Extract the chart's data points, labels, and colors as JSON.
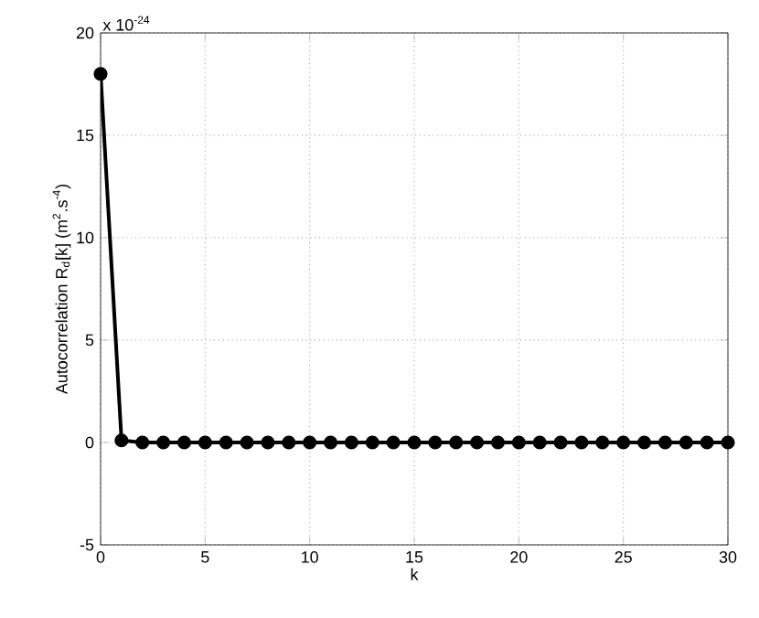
{
  "chart_data": {
    "type": "line",
    "xlabel": "k",
    "ylabel": "Autocorrelation R$_{d}$[k] (m$^{2}$.s$^{-4}$)",
    "annotations": [
      "x 10$^{-24}$"
    ],
    "x": [
      0,
      1,
      2,
      3,
      4,
      5,
      6,
      7,
      8,
      9,
      10,
      11,
      12,
      13,
      14,
      15,
      16,
      17,
      18,
      19,
      20,
      21,
      22,
      23,
      24,
      25,
      26,
      27,
      28,
      29,
      30
    ],
    "values": [
      18,
      0.1,
      0,
      0,
      0,
      0,
      0,
      0,
      0,
      0,
      0,
      0,
      0,
      0,
      0,
      0,
      0,
      0,
      0,
      0,
      0,
      0,
      0,
      0,
      0,
      0,
      0,
      0,
      0,
      0,
      0
    ],
    "color": "#000000",
    "marker": "circle",
    "line_style": "solid",
    "grid": true,
    "xlim": [
      0,
      30
    ],
    "xticks": [
      0,
      5,
      10,
      15,
      20,
      25,
      30
    ],
    "ylim": [
      -5,
      20
    ],
    "yticks": [
      -5,
      0,
      5,
      10,
      15,
      20
    ]
  }
}
